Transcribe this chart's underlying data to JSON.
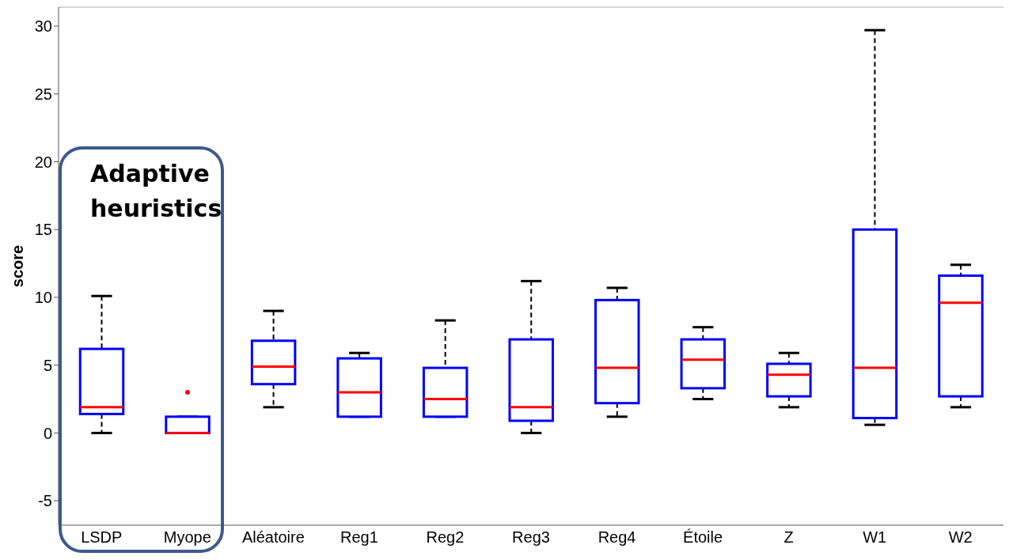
{
  "chart_data": {
    "type": "box",
    "ylabel": "score",
    "annotations": [
      "Adaptive heuristics"
    ],
    "categories": [
      "LSDP",
      "Myope",
      "Aléatoire",
      "Reg1",
      "Reg2",
      "Reg3",
      "Reg4",
      "Étoile",
      "Z",
      "W1",
      "W2"
    ],
    "ylim": [
      -6.8,
      31.4
    ],
    "yticks": [
      -5,
      0,
      5,
      10,
      15,
      20,
      25,
      30
    ],
    "series": [
      {
        "color": "#0000ff",
        "boxes": [
          {
            "low": 0,
            "q1": 1.4,
            "median": 1.9,
            "q3": 6.2,
            "high": 10.1
          },
          {
            "low": 0,
            "q1": 0,
            "median": 0,
            "q3": 1.2,
            "high": 1.2,
            "outliers": [
              3.0
            ]
          },
          {
            "low": 1.9,
            "q1": 3.6,
            "median": 4.9,
            "q3": 6.8,
            "high": 9.0
          },
          {
            "low": 1.2,
            "q1": 1.2,
            "median": 3.0,
            "q3": 5.5,
            "high": 5.9
          },
          {
            "low": 1.2,
            "q1": 1.2,
            "median": 2.5,
            "q3": 4.8,
            "high": 8.3
          },
          {
            "low": 0,
            "q1": 0.9,
            "median": 1.9,
            "q3": 6.9,
            "high": 11.2
          },
          {
            "low": 1.2,
            "q1": 2.2,
            "median": 4.8,
            "q3": 9.8,
            "high": 10.7
          },
          {
            "low": 2.5,
            "q1": 3.3,
            "median": 5.4,
            "q3": 6.9,
            "high": 7.8
          },
          {
            "low": 1.9,
            "q1": 2.7,
            "median": 4.3,
            "q3": 5.1,
            "high": 5.9
          },
          {
            "low": 0.6,
            "q1": 1.1,
            "median": 4.8,
            "q3": 15.0,
            "high": 29.7
          },
          {
            "low": 1.9,
            "q1": 2.7,
            "median": 9.6,
            "q3": 11.6,
            "high": 12.4
          }
        ]
      }
    ]
  }
}
